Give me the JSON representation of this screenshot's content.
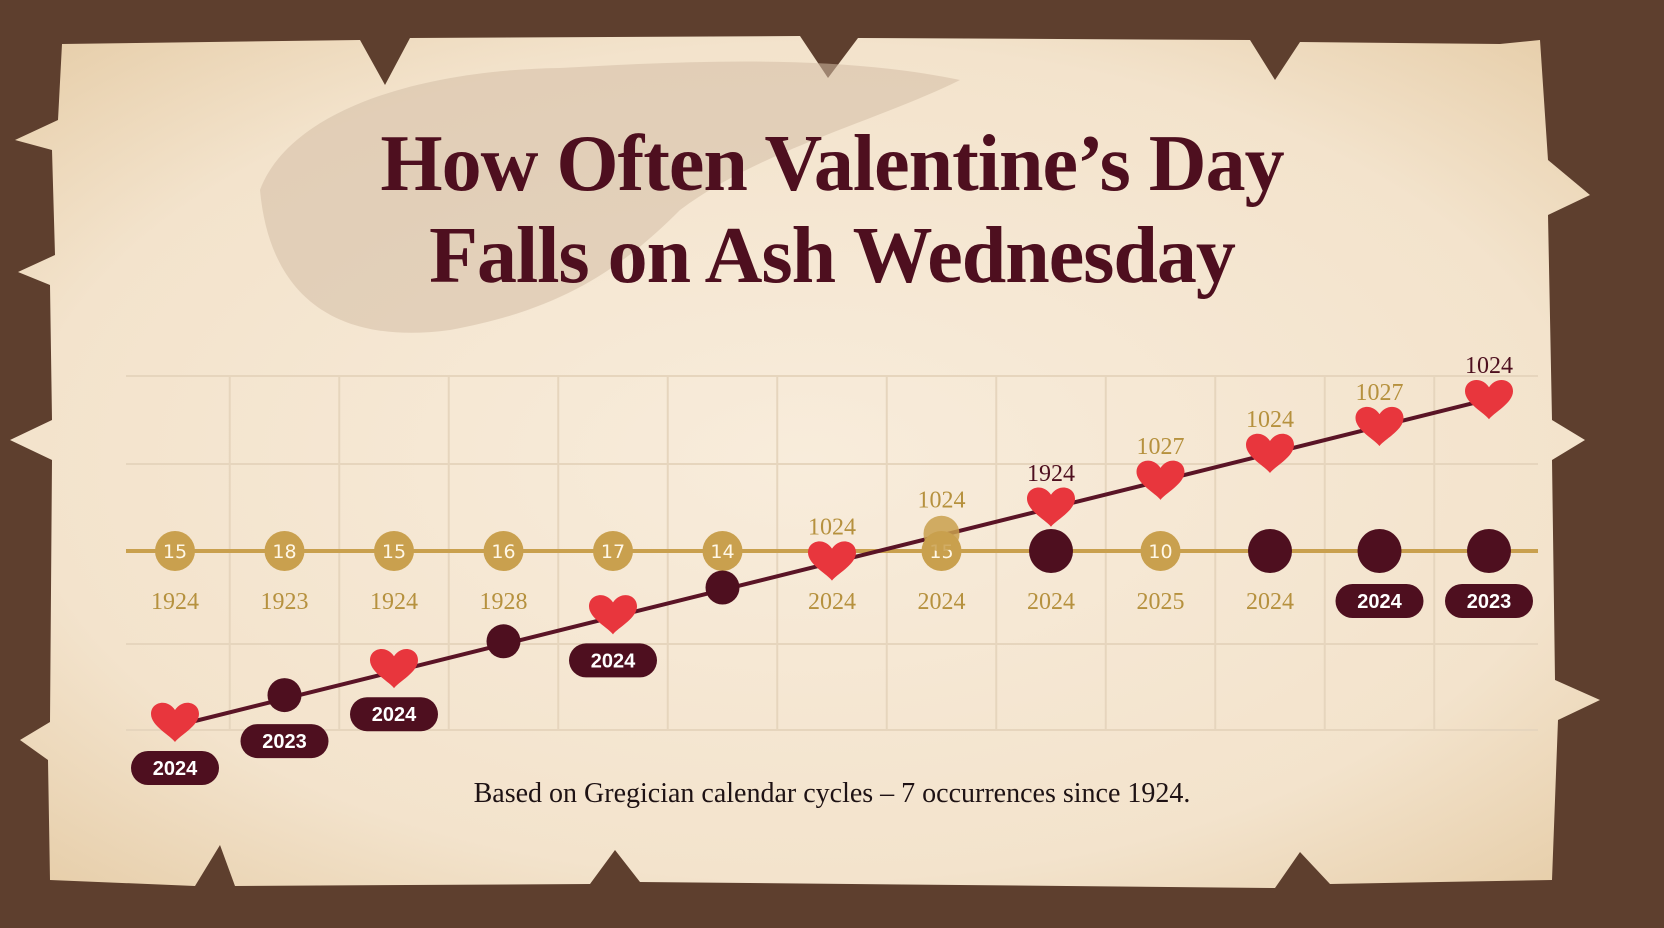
{
  "title_line1": "How Often Valentine’s Day",
  "title_line2": "Falls on Ash Wednesday",
  "footnote": "Based on Gregician calendar cycles – 7 occurrences since 1924.",
  "colors": {
    "background": "#5e3f2e",
    "paper": "#f5e7d3",
    "maroon": "#4e0f1f",
    "gold": "#c9a04e",
    "gold_text": "#b6913e",
    "heart": "#e8363d",
    "grid": "#e6d5bd"
  },
  "chart_data": {
    "type": "line",
    "columns": [
      {
        "axis_marker": "coin",
        "axis_value": "15",
        "axis_year": "1924",
        "axis_year_style": "text",
        "rising_marker": "heart",
        "rising_level": 0,
        "rising_label": "2024",
        "rising_label_style": "pill"
      },
      {
        "axis_marker": "coin",
        "axis_value": "18",
        "axis_year": "1923",
        "axis_year_style": "text",
        "rising_marker": "dot",
        "rising_level": 1,
        "rising_label": "2023",
        "rising_label_style": "pill"
      },
      {
        "axis_marker": "coin",
        "axis_value": "15",
        "axis_year": "1924",
        "axis_year_style": "text",
        "rising_marker": "heart",
        "rising_level": 2,
        "rising_label": "2024",
        "rising_label_style": "pill"
      },
      {
        "axis_marker": "coin",
        "axis_value": "16",
        "axis_year": "1928",
        "axis_year_style": "text",
        "rising_marker": "dot",
        "rising_level": 3,
        "rising_label": "",
        "rising_label_style": "none"
      },
      {
        "axis_marker": "coin",
        "axis_value": "17",
        "axis_year": "",
        "axis_year_style": "none",
        "rising_marker": "heart",
        "rising_level": 4,
        "rising_label": "2024",
        "rising_label_style": "pill"
      },
      {
        "axis_marker": "coin",
        "axis_value": "14",
        "axis_year": "",
        "axis_year_style": "none",
        "rising_marker": "dot",
        "rising_level": 5,
        "rising_label": "",
        "rising_label_style": "none"
      },
      {
        "axis_marker": "none",
        "axis_value": "",
        "axis_year": "2024",
        "axis_year_style": "text",
        "rising_marker": "heart",
        "rising_level": 6,
        "rising_label": "1024",
        "rising_label_style": "gold"
      },
      {
        "axis_marker": "coin",
        "axis_value": "15",
        "axis_year": "2024",
        "axis_year_style": "text",
        "rising_marker": "coin",
        "rising_level": 7,
        "rising_label": "1024",
        "rising_label_style": "gold"
      },
      {
        "axis_marker": "dot",
        "axis_value": "",
        "axis_year": "2024",
        "axis_year_style": "text",
        "rising_marker": "heart",
        "rising_level": 8,
        "rising_label": "1924",
        "rising_label_style": "maroon"
      },
      {
        "axis_marker": "coin",
        "axis_value": "10",
        "axis_year": "2025",
        "axis_year_style": "text",
        "rising_marker": "heart",
        "rising_level": 9,
        "rising_label": "1027",
        "rising_label_style": "gold"
      },
      {
        "axis_marker": "dot",
        "axis_value": "",
        "axis_year": "2024",
        "axis_year_style": "text",
        "rising_marker": "heart",
        "rising_level": 10,
        "rising_label": "1024",
        "rising_label_style": "gold"
      },
      {
        "axis_marker": "dot",
        "axis_value": "",
        "axis_year": "2024",
        "axis_year_style": "pill",
        "rising_marker": "heart",
        "rising_level": 11,
        "rising_label": "1027",
        "rising_label_style": "gold"
      },
      {
        "axis_marker": "dot",
        "axis_value": "",
        "axis_year": "2023",
        "axis_year_style": "pill",
        "rising_marker": "heart",
        "rising_level": 12,
        "rising_label": "1024",
        "rising_label_style": "maroon"
      }
    ]
  }
}
